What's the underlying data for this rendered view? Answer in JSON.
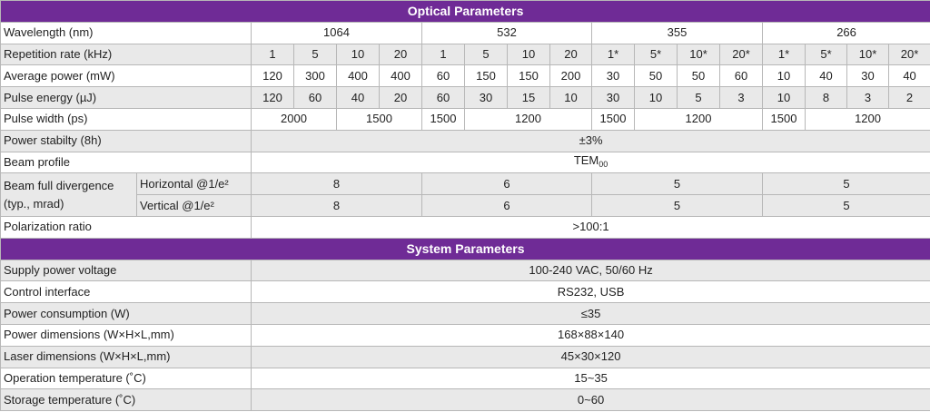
{
  "optical": {
    "title": "Optical Parameters",
    "wavelength": {
      "label": "Wavelength (nm)",
      "values": [
        "1064",
        "532",
        "355",
        "266"
      ]
    },
    "rep_rate": {
      "label": "Repetition rate (kHz)",
      "values": [
        "1",
        "5",
        "10",
        "20",
        "1",
        "5",
        "10",
        "20",
        "1*",
        "5*",
        "10*",
        "20*",
        "1*",
        "5*",
        "10*",
        "20*"
      ]
    },
    "avg_power": {
      "label": "Average power (mW)",
      "values": [
        "120",
        "300",
        "400",
        "400",
        "60",
        "150",
        "150",
        "200",
        "30",
        "50",
        "50",
        "60",
        "10",
        "40",
        "30",
        "40"
      ]
    },
    "pulse_energy": {
      "label": "Pulse energy (µJ)",
      "values": [
        "120",
        "60",
        "40",
        "20",
        "60",
        "30",
        "15",
        "10",
        "30",
        "10",
        "5",
        "3",
        "10",
        "8",
        "3",
        "2"
      ]
    },
    "pulse_width": {
      "label": "Pulse width (ps)",
      "values": [
        "2000",
        "1500",
        "1500",
        "1200",
        "1500",
        "1200",
        "1500",
        "1200"
      ]
    },
    "power_stability": {
      "label": "Power stabilty (8h)",
      "value": "±3%"
    },
    "beam_profile": {
      "label": "Beam profile",
      "value_main": "TEM",
      "value_sub": "00"
    },
    "divergence": {
      "label_line1": "Beam full divergence",
      "label_line2": "(typ., mrad)",
      "horizontal": {
        "label": "Horizontal @1/e²",
        "values": [
          "8",
          "6",
          "5",
          "5"
        ]
      },
      "vertical": {
        "label": "Vertical @1/e²",
        "values": [
          "8",
          "6",
          "5",
          "5"
        ]
      }
    },
    "polarization": {
      "label": "Polarization ratio",
      "value": ">100:1"
    }
  },
  "system": {
    "title": "System Parameters",
    "rows": [
      {
        "label": "Supply power voltage",
        "value": "100-240 VAC, 50/60 Hz"
      },
      {
        "label": "Control interface",
        "value": "RS232, USB"
      },
      {
        "label": "Power consumption (W)",
        "value": "≤35"
      },
      {
        "label": "Power dimensions (W×H×L,mm)",
        "value": "168×88×140"
      },
      {
        "label": "Laser dimensions (W×H×L,mm)",
        "value": "45×30×120"
      },
      {
        "label": "Operation temperature (˚C)",
        "value": "15~35"
      },
      {
        "label": "Storage temperature (˚C)",
        "value": "0~60"
      }
    ]
  },
  "colors": {
    "header_bg": "#6f2b96",
    "header_text": "#ffffff",
    "alt_row_bg": "#e9e9e9",
    "border": "#b7b7b7"
  }
}
